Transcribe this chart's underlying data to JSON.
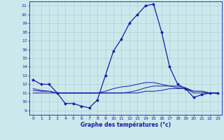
{
  "title": "Graphe des températures (°c)",
  "background_color": "#cce8ec",
  "grid_color": "#aacccc",
  "line_color": "#1a1aaa",
  "xlim": [
    -0.5,
    23.5
  ],
  "ylim": [
    8.5,
    21.5
  ],
  "yticks": [
    9,
    10,
    11,
    12,
    13,
    14,
    15,
    16,
    17,
    18,
    19,
    20,
    21
  ],
  "xticks": [
    0,
    1,
    2,
    3,
    4,
    5,
    6,
    7,
    8,
    9,
    10,
    11,
    12,
    13,
    14,
    15,
    16,
    17,
    18,
    19,
    20,
    21,
    22,
    23
  ],
  "hours": [
    0,
    1,
    2,
    3,
    4,
    5,
    6,
    7,
    8,
    9,
    10,
    11,
    12,
    13,
    14,
    15,
    16,
    17,
    18,
    19,
    20,
    21,
    22,
    23
  ],
  "temp_main": [
    12.5,
    12.0,
    12.0,
    11.0,
    9.8,
    9.8,
    9.5,
    9.3,
    10.2,
    13.0,
    15.8,
    17.2,
    19.0,
    20.0,
    21.0,
    21.2,
    18.0,
    14.0,
    12.0,
    11.5,
    10.5,
    10.8,
    11.0,
    11.0
  ],
  "temp_line2": [
    11.0,
    11.0,
    11.0,
    11.0,
    11.0,
    11.0,
    11.0,
    11.0,
    11.0,
    11.0,
    11.0,
    11.0,
    11.0,
    11.0,
    11.2,
    11.2,
    11.3,
    11.5,
    11.5,
    11.5,
    11.0,
    11.0,
    11.0,
    11.0
  ],
  "temp_line3": [
    11.3,
    11.2,
    11.2,
    11.0,
    11.0,
    11.0,
    11.0,
    11.0,
    11.0,
    11.0,
    11.0,
    11.0,
    11.1,
    11.3,
    11.6,
    11.8,
    11.8,
    11.8,
    11.6,
    11.5,
    11.2,
    11.2,
    11.0,
    11.0
  ],
  "temp_line4": [
    11.5,
    11.3,
    11.2,
    11.0,
    11.0,
    11.0,
    11.0,
    11.0,
    11.0,
    11.2,
    11.5,
    11.7,
    11.8,
    12.0,
    12.2,
    12.2,
    12.0,
    11.8,
    11.8,
    11.6,
    11.2,
    11.2,
    11.0,
    11.0
  ]
}
